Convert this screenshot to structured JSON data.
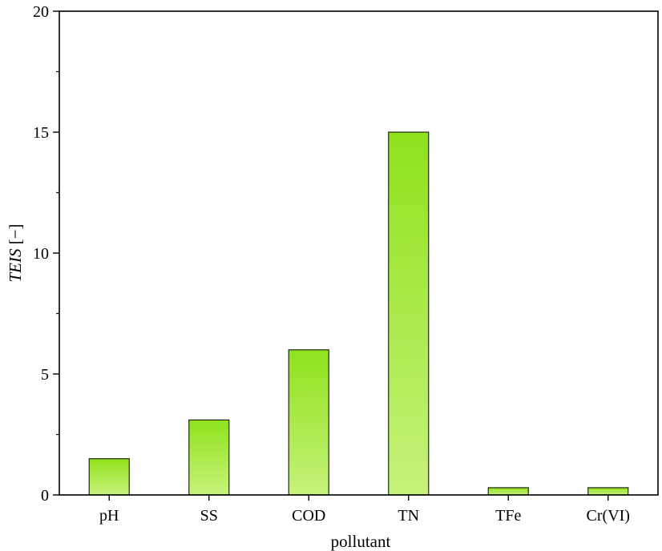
{
  "chart_data": {
    "type": "bar",
    "categories": [
      "pH",
      "SS",
      "COD",
      "TN",
      "TFe",
      "Cr(VI)"
    ],
    "values": [
      1.5,
      3.1,
      6.0,
      15.0,
      0.3,
      0.3
    ],
    "xlabel": "pollutant",
    "ylabel": {
      "italic": "TEIS",
      "unit": " [−]"
    },
    "ylim": [
      0,
      20
    ],
    "yticks": [
      0,
      5,
      10,
      15,
      20
    ],
    "grid": false,
    "bar_gradient": {
      "top": "#8fe21c",
      "bottom": "#c6f27a"
    },
    "bar_edge_color": "#1f2a10"
  }
}
